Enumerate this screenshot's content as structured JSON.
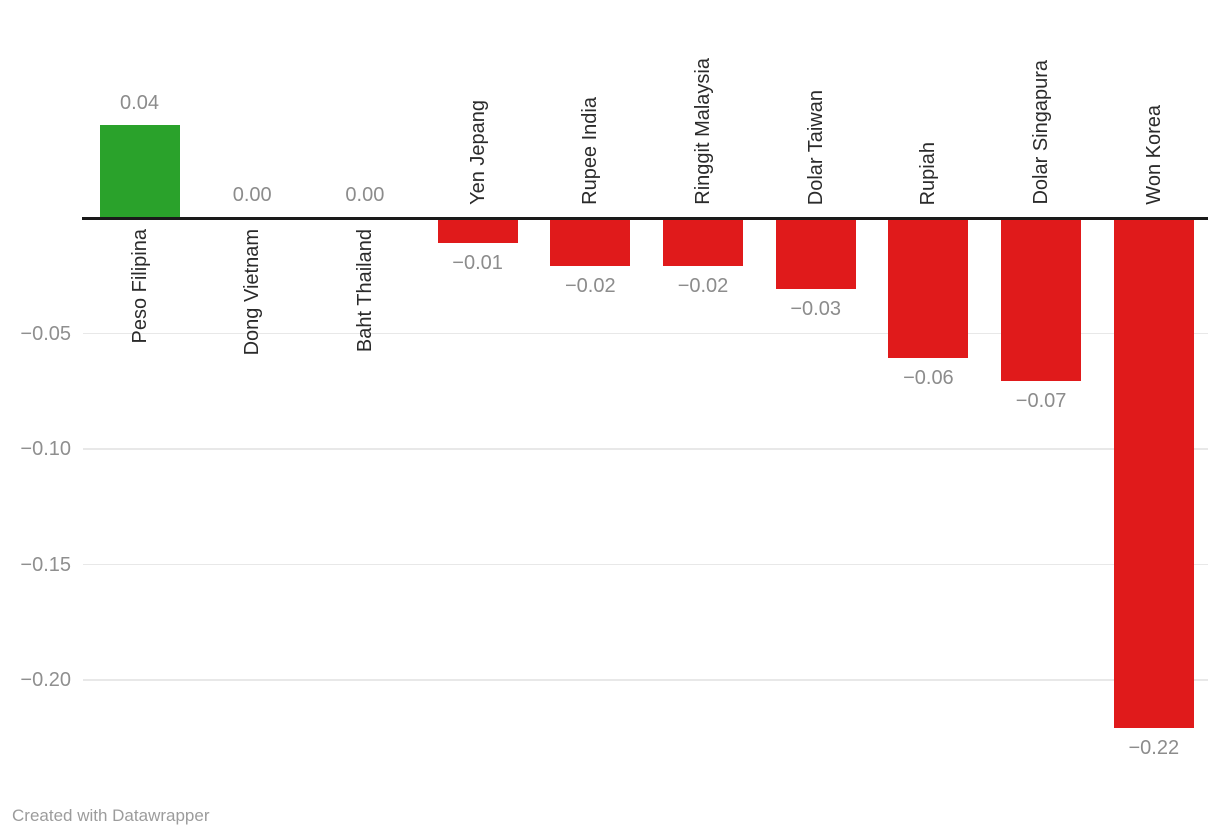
{
  "chart_data": {
    "type": "bar",
    "orientation": "vertical",
    "title": "",
    "xlabel": "",
    "ylabel": "",
    "categories": [
      "Peso Filipina",
      "Dong Vietnam",
      "Baht Thailand",
      "Yen Jepang",
      "Rupee India",
      "Ringgit Malaysia",
      "Dolar Taiwan",
      "Rupiah",
      "Dolar Singapura",
      "Won Korea"
    ],
    "values": [
      0.04,
      0.0,
      0.0,
      -0.01,
      -0.02,
      -0.02,
      -0.03,
      -0.06,
      -0.07,
      -0.22
    ],
    "value_labels": [
      "0.04",
      "0.00",
      "0.00",
      "−0.01",
      "−0.02",
      "−0.02",
      "−0.03",
      "−0.06",
      "−0.07",
      "−0.22"
    ],
    "yticks": [
      {
        "value": -0.05,
        "label": "−0.05"
      },
      {
        "value": -0.1,
        "label": "−0.10"
      },
      {
        "value": -0.15,
        "label": "−0.15"
      },
      {
        "value": -0.2,
        "label": "−0.20"
      }
    ],
    "ylim": [
      -0.235,
      0.05
    ],
    "grid": "horizontal-only",
    "legend": "none",
    "colors": {
      "positive_bar": "#2aa22b",
      "negative_bar": "#e01a1b",
      "zero_axis_line": "#1a1a1a",
      "gridline": "#e8e8e8",
      "value_label_text": "#8c8c8c",
      "category_label_text": "#2b2b2b",
      "credit_text": "#9c9c9c"
    }
  },
  "footer": {
    "credit": "Created with Datawrapper"
  }
}
